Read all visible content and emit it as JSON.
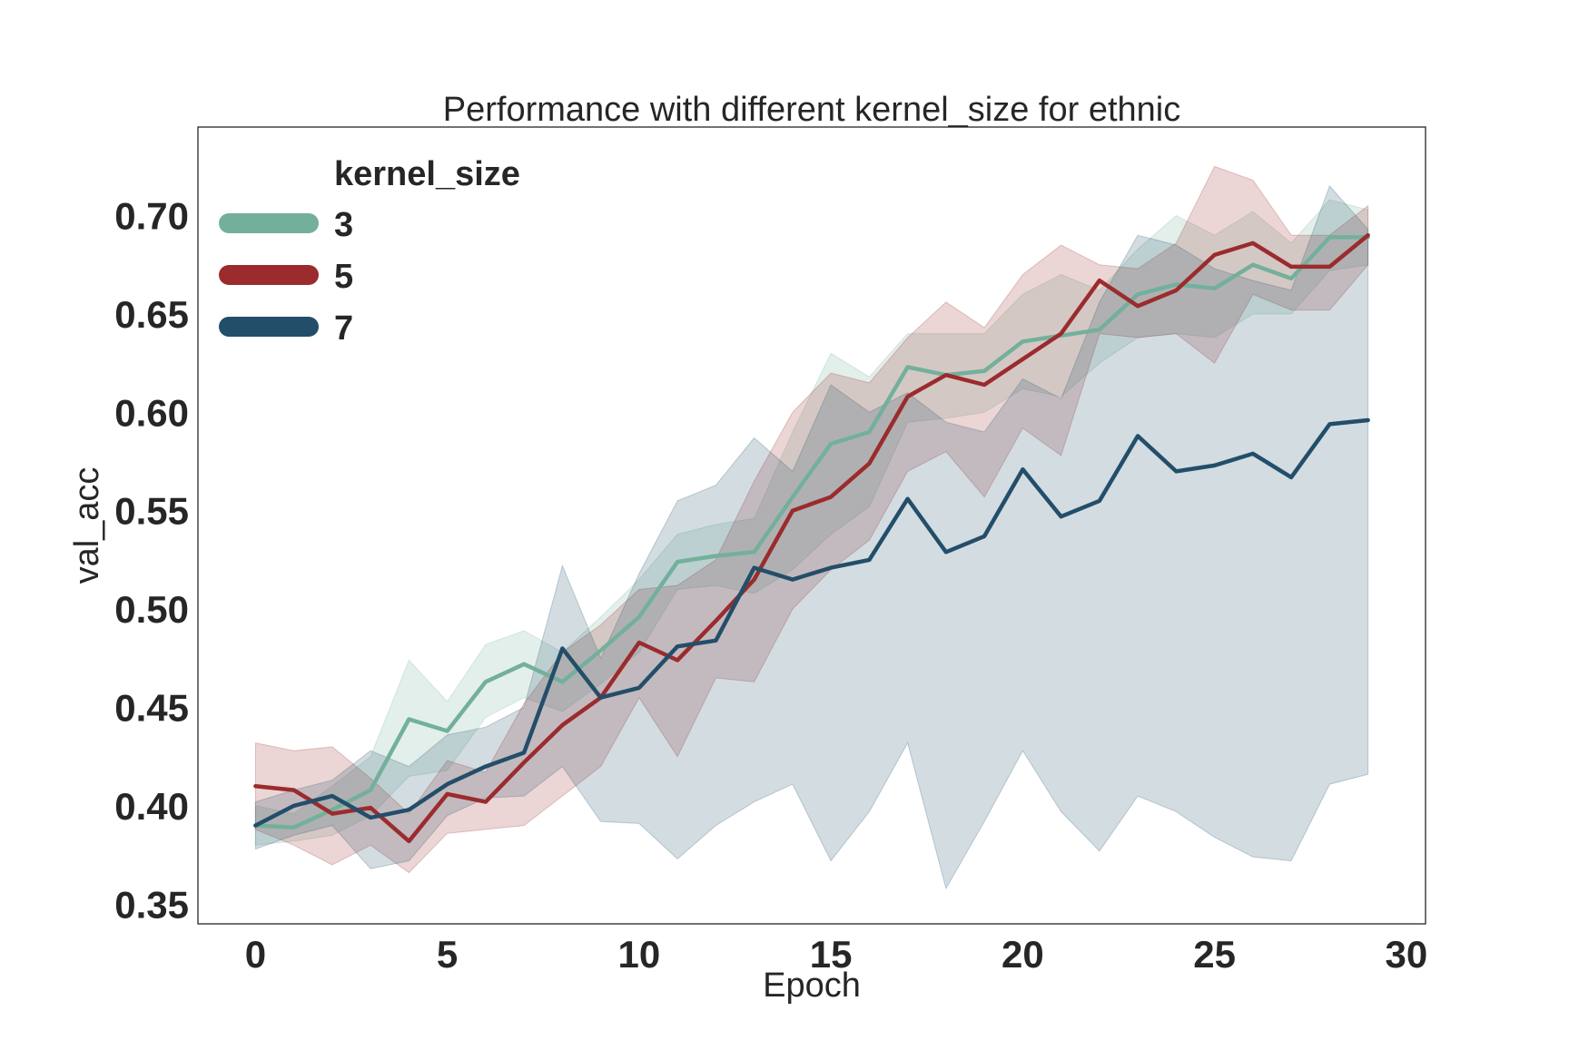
{
  "chart_data": {
    "type": "line",
    "title": "Performance with different kernel_size for ethnic",
    "xlabel": "Epoch",
    "ylabel": "val_acc",
    "xlim": [
      -1.5,
      30.5
    ],
    "ylim": [
      0.34,
      0.745
    ],
    "x_ticks": [
      0,
      5,
      10,
      15,
      20,
      25,
      30
    ],
    "x_tick_labels": [
      "0",
      "5",
      "10",
      "15",
      "20",
      "25",
      "30"
    ],
    "y_ticks": [
      0.35,
      0.4,
      0.45,
      0.5,
      0.55,
      0.6,
      0.65,
      0.7
    ],
    "y_tick_labels": [
      "0.35",
      "0.40",
      "0.45",
      "0.50",
      "0.55",
      "0.60",
      "0.65",
      "0.70"
    ],
    "grid": false,
    "legend": {
      "title": "kernel_size",
      "placement": "top-left"
    },
    "x": [
      0,
      1,
      2,
      3,
      4,
      5,
      6,
      7,
      8,
      9,
      10,
      11,
      12,
      13,
      14,
      15,
      16,
      17,
      18,
      19,
      20,
      21,
      22,
      23,
      24,
      25,
      26,
      27,
      28,
      29
    ],
    "series": [
      {
        "name": "3",
        "color": "#73b09b",
        "values": [
          0.39,
          0.389,
          0.398,
          0.408,
          0.444,
          0.438,
          0.463,
          0.472,
          0.463,
          0.479,
          0.496,
          0.524,
          0.527,
          0.529,
          0.557,
          0.584,
          0.59,
          0.623,
          0.619,
          0.621,
          0.636,
          0.639,
          0.642,
          0.66,
          0.665,
          0.663,
          0.675,
          0.668,
          0.689,
          0.689
        ],
        "lower": [
          0.38,
          0.382,
          0.385,
          0.395,
          0.415,
          0.418,
          0.445,
          0.455,
          0.448,
          0.462,
          0.478,
          0.51,
          0.512,
          0.508,
          0.52,
          0.538,
          0.552,
          0.595,
          0.597,
          0.6,
          0.612,
          0.608,
          0.625,
          0.638,
          0.64,
          0.638,
          0.65,
          0.65,
          0.672,
          0.675
        ],
        "upper": [
          0.4,
          0.396,
          0.41,
          0.425,
          0.474,
          0.453,
          0.482,
          0.489,
          0.478,
          0.496,
          0.515,
          0.538,
          0.543,
          0.546,
          0.59,
          0.63,
          0.618,
          0.64,
          0.64,
          0.64,
          0.66,
          0.67,
          0.662,
          0.683,
          0.7,
          0.69,
          0.702,
          0.686,
          0.708,
          0.703
        ]
      },
      {
        "name": "5",
        "color": "#9b2b2d",
        "values": [
          0.41,
          0.408,
          0.396,
          0.399,
          0.382,
          0.406,
          0.402,
          0.422,
          0.441,
          0.455,
          0.483,
          0.474,
          0.494,
          0.515,
          0.55,
          0.557,
          0.574,
          0.608,
          0.619,
          0.614,
          0.627,
          0.64,
          0.667,
          0.654,
          0.662,
          0.68,
          0.686,
          0.674,
          0.674,
          0.69
        ],
        "lower": [
          0.388,
          0.38,
          0.37,
          0.38,
          0.366,
          0.386,
          0.388,
          0.39,
          0.405,
          0.42,
          0.455,
          0.425,
          0.465,
          0.463,
          0.5,
          0.52,
          0.535,
          0.57,
          0.58,
          0.557,
          0.592,
          0.578,
          0.64,
          0.638,
          0.64,
          0.625,
          0.66,
          0.652,
          0.652,
          0.675
        ],
        "upper": [
          0.432,
          0.428,
          0.43,
          0.414,
          0.396,
          0.423,
          0.417,
          0.452,
          0.478,
          0.492,
          0.51,
          0.512,
          0.525,
          0.565,
          0.6,
          0.62,
          0.615,
          0.638,
          0.656,
          0.643,
          0.67,
          0.685,
          0.675,
          0.673,
          0.686,
          0.725,
          0.718,
          0.69,
          0.69,
          0.705
        ]
      },
      {
        "name": "7",
        "color": "#234e6a",
        "values": [
          0.39,
          0.4,
          0.405,
          0.394,
          0.398,
          0.411,
          0.42,
          0.427,
          0.48,
          0.455,
          0.46,
          0.481,
          0.484,
          0.521,
          0.515,
          0.521,
          0.525,
          0.556,
          0.529,
          0.537,
          0.571,
          0.547,
          0.555,
          0.588,
          0.57,
          0.573,
          0.579,
          0.567,
          0.594,
          0.596
        ],
        "lower": [
          0.378,
          0.385,
          0.39,
          0.368,
          0.372,
          0.395,
          0.404,
          0.405,
          0.42,
          0.392,
          0.391,
          0.373,
          0.39,
          0.402,
          0.411,
          0.372,
          0.397,
          0.432,
          0.358,
          0.392,
          0.428,
          0.397,
          0.377,
          0.405,
          0.397,
          0.384,
          0.374,
          0.372,
          0.411,
          0.416
        ],
        "upper": [
          0.402,
          0.408,
          0.413,
          0.428,
          0.42,
          0.436,
          0.44,
          0.45,
          0.522,
          0.475,
          0.518,
          0.555,
          0.563,
          0.587,
          0.57,
          0.614,
          0.6,
          0.61,
          0.595,
          0.59,
          0.617,
          0.607,
          0.656,
          0.69,
          0.685,
          0.673,
          0.667,
          0.662,
          0.715,
          0.693
        ]
      }
    ]
  }
}
